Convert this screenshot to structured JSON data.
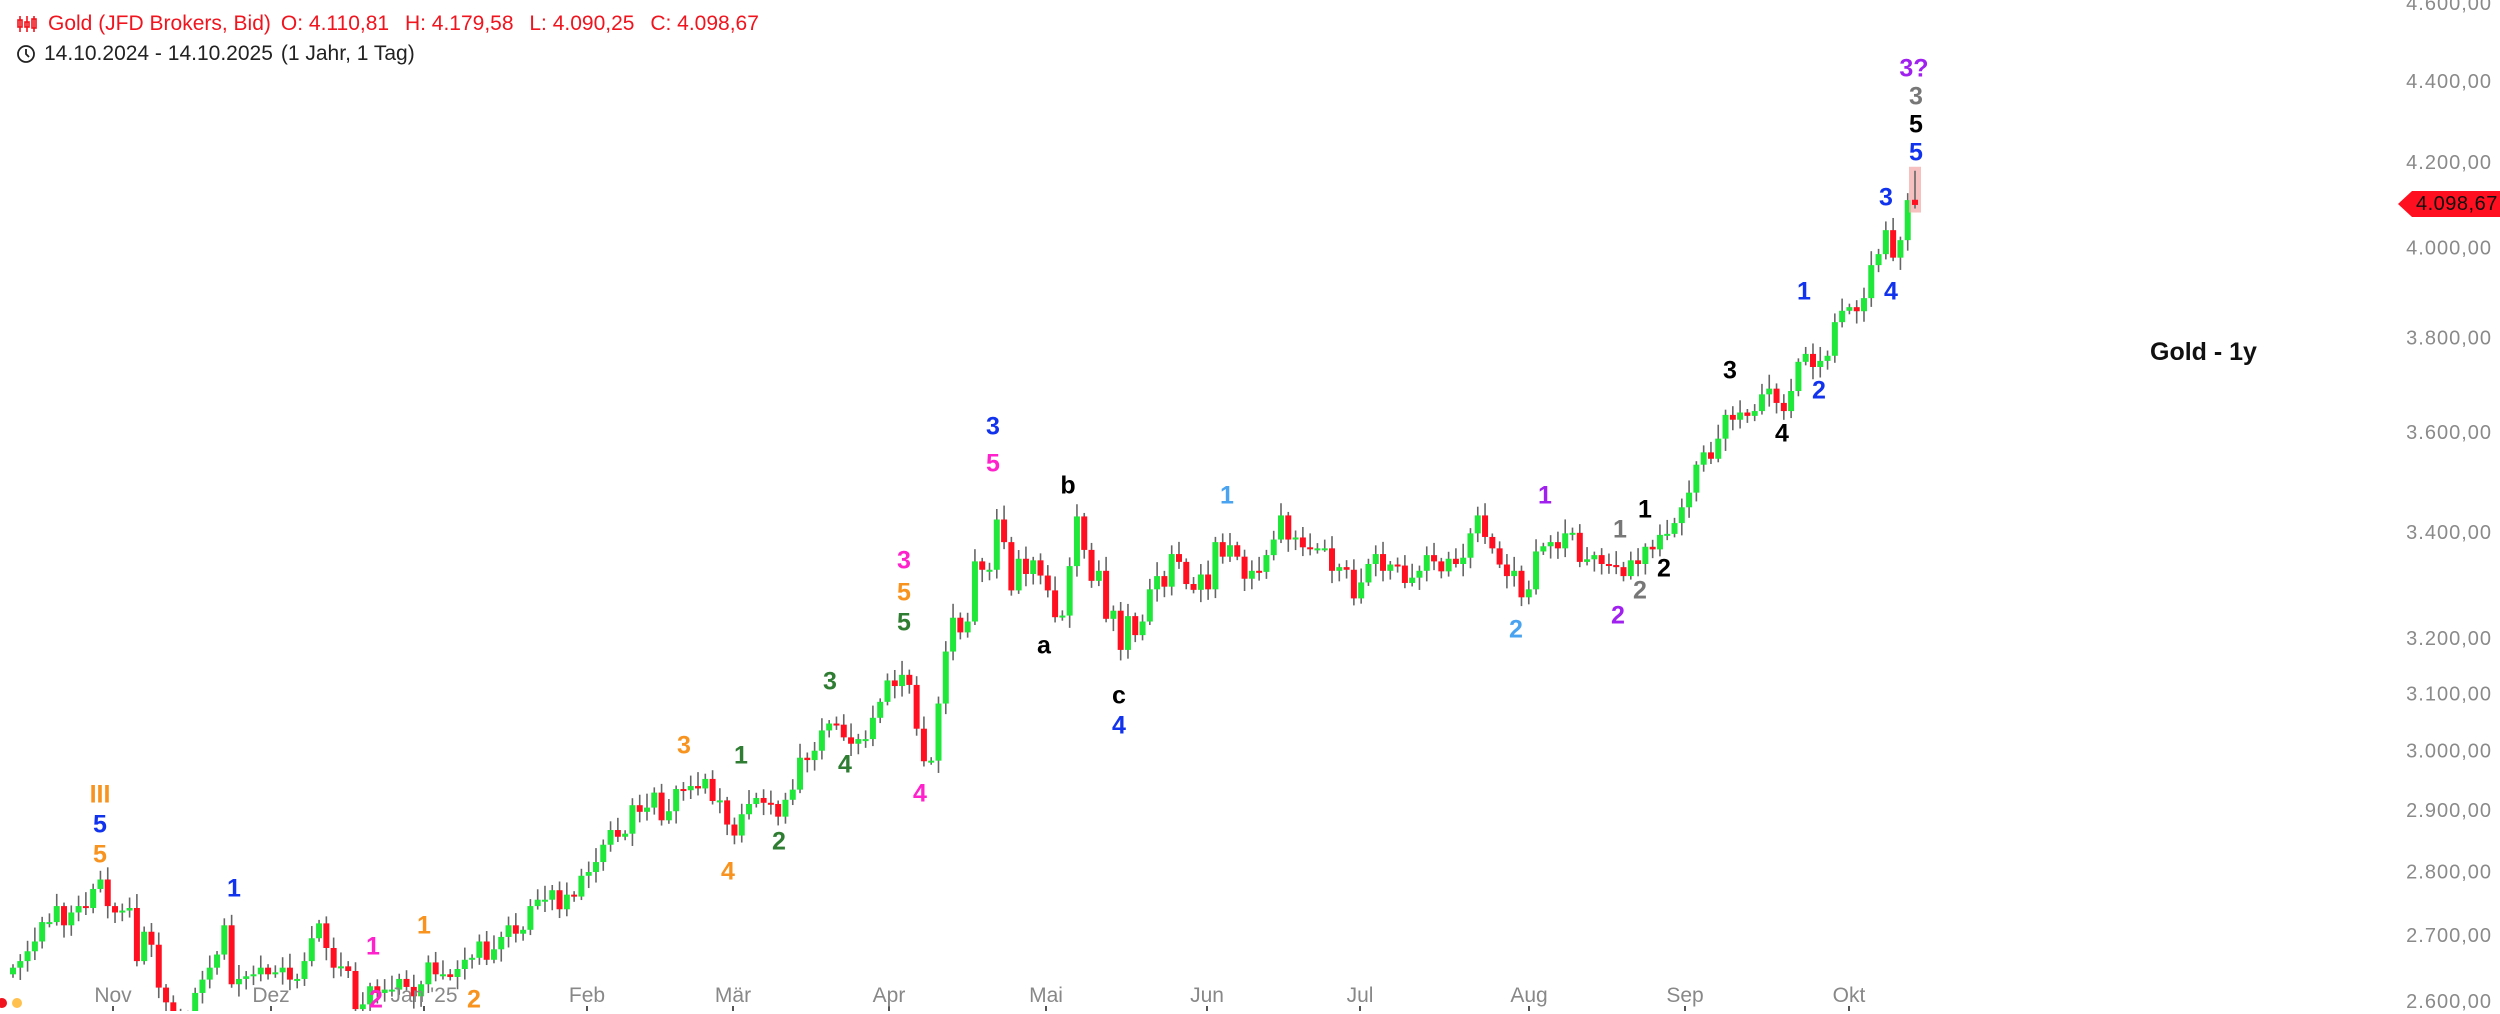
{
  "header": {
    "instrument": "Gold (JFD Brokers, Bid)",
    "open": "O: 4.110,81",
    "high": "H: 4.179,58",
    "low": "L: 4.090,25",
    "close": "C: 4.098,67",
    "range": "14.10.2024 - 14.10.2025",
    "period": "(1 Jahr, 1 Tag)"
  },
  "chart_title": "Gold - 1y",
  "current_price_label": "4.098,67",
  "colors": {
    "up": "#1fe83a",
    "down": "#ff0f1f",
    "wick": "#666666",
    "header": "#f0141e",
    "price_tag": "#ff0f1f"
  },
  "chart_data": {
    "type": "candlestick",
    "scale": "log",
    "ylim": [
      2600,
      4600
    ],
    "grid": false,
    "y_ticks": [
      {
        "value": 2600,
        "label": "2.600,00"
      },
      {
        "value": 2700,
        "label": "2.700,00"
      },
      {
        "value": 2800,
        "label": "2.800,00"
      },
      {
        "value": 2900,
        "label": "2.900,00"
      },
      {
        "value": 3000,
        "label": "3.000,00"
      },
      {
        "value": 3100,
        "label": "3.100,00"
      },
      {
        "value": 3200,
        "label": "3.200,00"
      },
      {
        "value": 3400,
        "label": "3.400,00"
      },
      {
        "value": 3600,
        "label": "3.600,00"
      },
      {
        "value": 3800,
        "label": "3.800,00"
      },
      {
        "value": 4000,
        "label": "4.000,00"
      },
      {
        "value": 4200,
        "label": "4.200,00"
      },
      {
        "value": 4400,
        "label": "4.400,00"
      },
      {
        "value": 4600,
        "label": "4.600,00"
      }
    ],
    "x_ticks": [
      "Nov",
      "Dez",
      "Jan '25",
      "Feb",
      "Mär",
      "Apr",
      "Mai",
      "Jun",
      "Jul",
      "Aug",
      "Sep",
      "Okt"
    ],
    "first_open": 2640,
    "daily_closes": [
      2650,
      2660,
      2675,
      2690,
      2720,
      2720,
      2745,
      2715,
      2735,
      2745,
      2742,
      2772,
      2787,
      2745,
      2735,
      2738,
      2742,
      2660,
      2705,
      2685,
      2620,
      2598,
      2573,
      2565,
      2563,
      2612,
      2632,
      2650,
      2670,
      2715,
      2625,
      2633,
      2637,
      2640,
      2650,
      2640,
      2643,
      2650,
      2632,
      2633,
      2660,
      2695,
      2718,
      2680,
      2650,
      2652,
      2645,
      2588,
      2595,
      2622,
      2612,
      2617,
      2617,
      2633,
      2621,
      2607,
      2625,
      2658,
      2640,
      2640,
      2636,
      2648,
      2662,
      2665,
      2690,
      2662,
      2678,
      2697,
      2715,
      2702,
      2708,
      2745,
      2755,
      2755,
      2770,
      2740,
      2763,
      2760,
      2793,
      2799,
      2815,
      2843,
      2867,
      2856,
      2861,
      2908,
      2897,
      2904,
      2929,
      2883,
      2898,
      2935,
      2933,
      2940,
      2936,
      2952,
      2915,
      2916,
      2876,
      2858,
      2893,
      2910,
      2920,
      2912,
      2910,
      2889,
      2917,
      2934,
      2988,
      2984,
      3000,
      3035,
      3047,
      3045,
      3023,
      3012,
      3020,
      3020,
      3057,
      3085,
      3123,
      3113,
      3133,
      3115,
      3038,
      2982,
      2983,
      3082,
      3175,
      3237,
      3210,
      3230,
      3343,
      3327,
      3327,
      3424,
      3380,
      3288,
      3348,
      3319,
      3345,
      3316,
      3288,
      3238,
      3241,
      3334,
      3430,
      3365,
      3306,
      3325,
      3235,
      3250,
      3178,
      3240,
      3205,
      3230,
      3290,
      3315,
      3295,
      3357,
      3342,
      3300,
      3289,
      3318,
      3290,
      3380,
      3352,
      3374,
      3352,
      3310,
      3325,
      3323,
      3355,
      3385,
      3432,
      3385,
      3389,
      3370,
      3368,
      3368,
      3368,
      3325,
      3332,
      3327,
      3273,
      3303,
      3338,
      3357,
      3325,
      3337,
      3335,
      3302,
      3312,
      3325,
      3355,
      3343,
      3324,
      3348,
      3338,
      3350,
      3397,
      3432,
      3390,
      3368,
      3337,
      3315,
      3325,
      3275,
      3290,
      3362,
      3372,
      3380,
      3368,
      3397,
      3398,
      3342,
      3347,
      3355,
      3338,
      3336,
      3332,
      3315,
      3345,
      3338,
      3371,
      3366,
      3394,
      3396,
      3417,
      3448,
      3477,
      3533,
      3558,
      3545,
      3586,
      3635,
      3625,
      3640,
      3633,
      3643,
      3678,
      3690,
      3660,
      3643,
      3685,
      3747,
      3764,
      3736,
      3749,
      3760,
      3833,
      3858,
      3866,
      3857,
      3886,
      3960,
      3985,
      4040,
      3977,
      4017,
      4110
    ],
    "last_candle": {
      "open": 4110.81,
      "high": 4179.58,
      "low": 4090.25,
      "close": 4098.67
    }
  },
  "wave_labels": [
    {
      "text": "III",
      "color": "#f7931e"
    },
    {
      "text": "5",
      "color": "#1133ee"
    },
    {
      "text": "5",
      "color": "#f7931e"
    },
    {
      "text": "1",
      "color": "#1133ee"
    },
    {
      "text": "1",
      "color": "#ff22cc"
    },
    {
      "text": "1",
      "color": "#f7931e"
    },
    {
      "text": "2",
      "color": "#ff22cc"
    },
    {
      "text": "2",
      "color": "#f7931e"
    },
    {
      "text": "3",
      "color": "#f7931e"
    },
    {
      "text": "4",
      "color": "#f7931e"
    },
    {
      "text": "1",
      "color": "#2e7d32"
    },
    {
      "text": "2",
      "color": "#2e7d32"
    },
    {
      "text": "3",
      "color": "#2e7d32"
    },
    {
      "text": "4",
      "color": "#2e7d32"
    },
    {
      "text": "3",
      "color": "#ff22cc"
    },
    {
      "text": "5",
      "color": "#f7931e"
    },
    {
      "text": "5",
      "color": "#2e7d32"
    },
    {
      "text": "4",
      "color": "#ff22cc"
    },
    {
      "text": "3",
      "color": "#1133ee"
    },
    {
      "text": "5",
      "color": "#ff22cc"
    },
    {
      "text": "a",
      "color": "#000000"
    },
    {
      "text": "b",
      "color": "#000000"
    },
    {
      "text": "c",
      "color": "#000000"
    },
    {
      "text": "4",
      "color": "#1133ee"
    },
    {
      "text": "1",
      "color": "#4aa3f0"
    },
    {
      "text": "2",
      "color": "#4aa3f0"
    },
    {
      "text": "1",
      "color": "#a020f0"
    },
    {
      "text": "1",
      "color": "#777777"
    },
    {
      "text": "1",
      "color": "#000000"
    },
    {
      "text": "2",
      "color": "#000000"
    },
    {
      "text": "2",
      "color": "#777777"
    },
    {
      "text": "2",
      "color": "#a020f0"
    },
    {
      "text": "3",
      "color": "#000000"
    },
    {
      "text": "4",
      "color": "#000000"
    },
    {
      "text": "1",
      "color": "#1133ee"
    },
    {
      "text": "2",
      "color": "#1133ee"
    },
    {
      "text": "3",
      "color": "#1133ee"
    },
    {
      "text": "4",
      "color": "#1133ee"
    },
    {
      "text": "5",
      "color": "#1133ee"
    },
    {
      "text": "5",
      "color": "#000000"
    },
    {
      "text": "3",
      "color": "#777777"
    },
    {
      "text": "3?",
      "color": "#a020f0"
    }
  ]
}
